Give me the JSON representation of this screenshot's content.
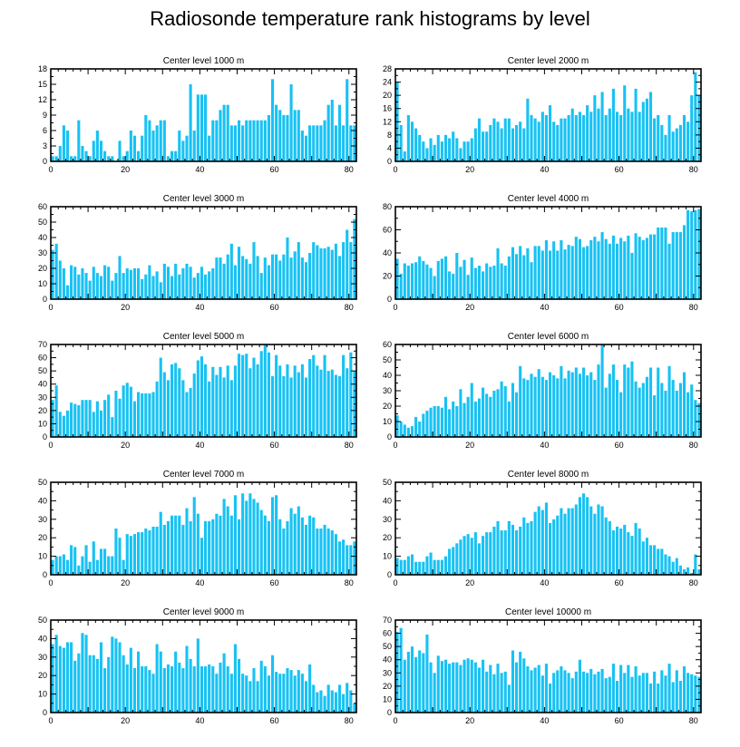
{
  "title": "Radiosonde temperature rank histograms by level",
  "colors": {
    "bar": "#17c2f4",
    "axis": "#000000",
    "background": "#ffffff"
  },
  "chart_data": [
    {
      "type": "bar",
      "title": "Center level 1000 m",
      "xlim": [
        0,
        82
      ],
      "ylim": [
        0,
        18
      ],
      "xticks": [
        0,
        20,
        40,
        60,
        80
      ],
      "yticks": [
        0,
        3,
        6,
        9,
        12,
        15,
        18
      ],
      "values": [
        1,
        1,
        3,
        7,
        6,
        1,
        1,
        8,
        3,
        2,
        1,
        4,
        6,
        4,
        2,
        1,
        1,
        0,
        4,
        1,
        2,
        6,
        5,
        2,
        5,
        9,
        8,
        6,
        7,
        8,
        8,
        1,
        2,
        2,
        6,
        4,
        5,
        15,
        6,
        13,
        13,
        13,
        5,
        8,
        8,
        10,
        11,
        11,
        7,
        7,
        8,
        7,
        8,
        8,
        8,
        8,
        8,
        8,
        9,
        16,
        11,
        10,
        9,
        9,
        15,
        10,
        10,
        6,
        5,
        7,
        7,
        7,
        7,
        8,
        11,
        12,
        7,
        11,
        7,
        16,
        7,
        7
      ]
    },
    {
      "type": "bar",
      "title": "Center level 2000 m",
      "xlim": [
        0,
        82
      ],
      "ylim": [
        0,
        28
      ],
      "xticks": [
        0,
        20,
        40,
        60,
        80
      ],
      "yticks": [
        0,
        4,
        8,
        12,
        16,
        20,
        24,
        28
      ],
      "values": [
        24,
        11,
        3,
        14,
        12,
        10,
        8,
        6,
        4,
        7,
        5,
        8,
        6,
        8,
        7,
        9,
        7,
        4,
        6,
        6,
        7,
        10,
        13,
        9,
        9,
        11,
        13,
        12,
        10,
        13,
        13,
        10,
        11,
        12,
        10,
        19,
        14,
        13,
        12,
        15,
        14,
        17,
        12,
        11,
        13,
        13,
        14,
        16,
        14,
        15,
        14,
        17,
        15,
        20,
        16,
        21,
        14,
        16,
        22,
        15,
        14,
        23,
        16,
        15,
        22,
        15,
        18,
        19,
        21,
        13,
        14,
        11,
        8,
        14,
        9,
        10,
        11,
        14,
        12,
        20,
        27,
        20
      ]
    },
    {
      "type": "bar",
      "title": "Center level 3000 m",
      "xlim": [
        0,
        82
      ],
      "ylim": [
        0,
        60
      ],
      "xticks": [
        0,
        20,
        40,
        60,
        80
      ],
      "yticks": [
        0,
        10,
        20,
        30,
        40,
        50,
        60
      ],
      "values": [
        32,
        36,
        25,
        20,
        9,
        22,
        21,
        16,
        20,
        17,
        12,
        21,
        17,
        15,
        22,
        21,
        12,
        17,
        28,
        17,
        20,
        19,
        20,
        20,
        13,
        16,
        22,
        15,
        18,
        11,
        23,
        21,
        15,
        23,
        16,
        20,
        23,
        21,
        14,
        17,
        21,
        16,
        18,
        20,
        27,
        27,
        23,
        29,
        36,
        22,
        34,
        28,
        26,
        23,
        37,
        28,
        17,
        27,
        22,
        29,
        29,
        25,
        29,
        40,
        27,
        31,
        37,
        27,
        24,
        30,
        37,
        35,
        33,
        33,
        34,
        32,
        36,
        28,
        37,
        45,
        37,
        52
      ]
    },
    {
      "type": "bar",
      "title": "Center level 4000 m",
      "xlim": [
        0,
        82
      ],
      "ylim": [
        0,
        80
      ],
      "xticks": [
        0,
        20,
        40,
        60,
        80
      ],
      "yticks": [
        0,
        20,
        40,
        60,
        80
      ],
      "values": [
        35,
        22,
        31,
        29,
        31,
        32,
        37,
        33,
        30,
        27,
        20,
        33,
        35,
        37,
        24,
        22,
        40,
        28,
        34,
        21,
        36,
        27,
        29,
        24,
        31,
        28,
        29,
        44,
        31,
        29,
        37,
        45,
        39,
        46,
        38,
        44,
        32,
        46,
        46,
        42,
        51,
        42,
        50,
        42,
        51,
        43,
        47,
        46,
        54,
        52,
        45,
        46,
        51,
        54,
        50,
        58,
        52,
        48,
        55,
        48,
        53,
        50,
        55,
        40,
        57,
        54,
        51,
        53,
        56,
        56,
        62,
        62,
        62,
        48,
        58,
        58,
        58,
        64,
        77,
        76,
        77,
        78
      ]
    },
    {
      "type": "bar",
      "title": "Center level 5000 m",
      "xlim": [
        0,
        82
      ],
      "ylim": [
        0,
        70
      ],
      "xticks": [
        0,
        20,
        40,
        60,
        80
      ],
      "yticks": [
        0,
        10,
        20,
        30,
        40,
        50,
        60,
        70
      ],
      "values": [
        28,
        39,
        19,
        16,
        20,
        26,
        25,
        24,
        28,
        28,
        28,
        19,
        27,
        20,
        28,
        32,
        15,
        35,
        29,
        39,
        41,
        38,
        27,
        34,
        33,
        33,
        33,
        34,
        42,
        60,
        49,
        43,
        55,
        56,
        52,
        43,
        34,
        37,
        48,
        58,
        61,
        55,
        42,
        53,
        47,
        53,
        45,
        54,
        43,
        54,
        63,
        62,
        63,
        52,
        60,
        55,
        65,
        70,
        64,
        46,
        62,
        54,
        46,
        55,
        45,
        54,
        49,
        55,
        45,
        59,
        62,
        54,
        51,
        62,
        50,
        51,
        47,
        46,
        62,
        52,
        64,
        50
      ]
    },
    {
      "type": "bar",
      "title": "Center level 6000 m",
      "xlim": [
        0,
        82
      ],
      "ylim": [
        0,
        60
      ],
      "xticks": [
        0,
        20,
        40,
        60,
        80
      ],
      "yticks": [
        0,
        10,
        20,
        30,
        40,
        50,
        60
      ],
      "values": [
        14,
        10,
        8,
        6,
        7,
        13,
        10,
        15,
        17,
        19,
        20,
        20,
        19,
        26,
        18,
        23,
        20,
        31,
        22,
        26,
        35,
        23,
        25,
        32,
        28,
        26,
        30,
        31,
        36,
        33,
        23,
        35,
        29,
        46,
        38,
        37,
        41,
        39,
        44,
        39,
        37,
        42,
        40,
        38,
        46,
        38,
        43,
        42,
        45,
        41,
        45,
        40,
        42,
        37,
        47,
        60,
        32,
        41,
        47,
        37,
        29,
        47,
        45,
        49,
        36,
        32,
        35,
        39,
        45,
        27,
        45,
        35,
        30,
        46,
        37,
        30,
        35,
        42,
        29,
        34,
        24,
        22
      ]
    },
    {
      "type": "bar",
      "title": "Center level 7000 m",
      "xlim": [
        0,
        82
      ],
      "ylim": [
        0,
        50
      ],
      "xticks": [
        0,
        20,
        40,
        60,
        80
      ],
      "yticks": [
        0,
        10,
        20,
        30,
        40,
        50
      ],
      "values": [
        8,
        10,
        10,
        11,
        8,
        16,
        15,
        5,
        10,
        16,
        7,
        18,
        8,
        14,
        14,
        10,
        10,
        25,
        20,
        8,
        22,
        21,
        22,
        23,
        23,
        25,
        24,
        26,
        26,
        34,
        27,
        29,
        32,
        32,
        32,
        27,
        36,
        29,
        42,
        33,
        20,
        29,
        29,
        30,
        33,
        32,
        41,
        37,
        32,
        43,
        30,
        44,
        40,
        44,
        41,
        39,
        35,
        32,
        29,
        42,
        43,
        30,
        25,
        29,
        36,
        33,
        37,
        31,
        27,
        32,
        31,
        25,
        25,
        27,
        25,
        24,
        22,
        18,
        19,
        16,
        16,
        18
      ]
    },
    {
      "type": "bar",
      "title": "Center level 8000 m",
      "xlim": [
        0,
        82
      ],
      "ylim": [
        0,
        50
      ],
      "xticks": [
        0,
        20,
        40,
        60,
        80
      ],
      "yticks": [
        0,
        10,
        20,
        30,
        40,
        50
      ],
      "values": [
        9,
        8,
        8,
        10,
        11,
        7,
        7,
        7,
        10,
        12,
        8,
        8,
        8,
        10,
        14,
        15,
        17,
        19,
        21,
        22,
        20,
        23,
        17,
        21,
        23,
        23,
        26,
        29,
        24,
        24,
        29,
        27,
        24,
        26,
        31,
        28,
        29,
        34,
        37,
        35,
        39,
        28,
        30,
        32,
        36,
        33,
        36,
        36,
        38,
        42,
        44,
        42,
        37,
        33,
        38,
        37,
        31,
        29,
        24,
        26,
        25,
        27,
        23,
        21,
        28,
        25,
        18,
        20,
        16,
        16,
        14,
        14,
        11,
        10,
        7,
        9,
        5,
        3,
        4,
        1,
        11,
        3
      ]
    },
    {
      "type": "bar",
      "title": "Center level 9000 m",
      "xlim": [
        0,
        82
      ],
      "ylim": [
        0,
        50
      ],
      "xticks": [
        0,
        20,
        40,
        60,
        80
      ],
      "yticks": [
        0,
        10,
        20,
        30,
        40,
        50
      ],
      "values": [
        37,
        42,
        36,
        35,
        38,
        38,
        28,
        32,
        43,
        42,
        31,
        31,
        29,
        38,
        24,
        30,
        41,
        40,
        38,
        31,
        26,
        35,
        24,
        33,
        25,
        25,
        23,
        21,
        37,
        33,
        24,
        26,
        25,
        33,
        27,
        24,
        36,
        29,
        25,
        40,
        25,
        25,
        26,
        25,
        21,
        27,
        32,
        25,
        21,
        37,
        29,
        21,
        20,
        17,
        24,
        17,
        28,
        25,
        20,
        31,
        22,
        21,
        21,
        24,
        23,
        20,
        23,
        21,
        17,
        26,
        15,
        11,
        12,
        9,
        15,
        12,
        11,
        15,
        10,
        16,
        12,
        5
      ]
    },
    {
      "type": "bar",
      "title": "Center level 10000 m",
      "xlim": [
        0,
        82
      ],
      "ylim": [
        0,
        70
      ],
      "xticks": [
        0,
        20,
        40,
        60,
        80
      ],
      "yticks": [
        0,
        10,
        20,
        30,
        40,
        50,
        60,
        70
      ],
      "values": [
        61,
        64,
        40,
        46,
        50,
        42,
        47,
        45,
        59,
        38,
        30,
        43,
        39,
        40,
        37,
        38,
        38,
        36,
        40,
        41,
        40,
        38,
        34,
        40,
        31,
        36,
        29,
        37,
        30,
        31,
        21,
        47,
        38,
        46,
        41,
        35,
        32,
        34,
        36,
        28,
        37,
        22,
        30,
        32,
        35,
        32,
        30,
        26,
        31,
        40,
        31,
        30,
        33,
        29,
        31,
        33,
        26,
        27,
        37,
        24,
        36,
        30,
        36,
        27,
        35,
        28,
        30,
        30,
        22,
        31,
        22,
        32,
        28,
        37,
        23,
        32,
        24,
        35,
        30,
        29,
        28,
        27
      ]
    }
  ]
}
